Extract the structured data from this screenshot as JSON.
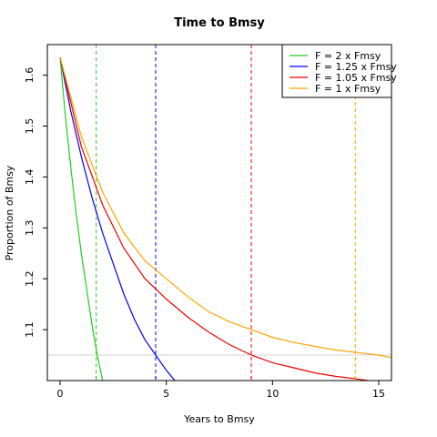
{
  "chart_data": {
    "type": "line",
    "title": "Time to Bmsy",
    "xlabel": "Years to Bmsy",
    "ylabel": "Proportion of Bmsy",
    "xlim": [
      -0.6,
      15.6
    ],
    "ylim": [
      1.0,
      1.66
    ],
    "x_ticks": [
      0,
      5,
      10,
      15
    ],
    "y_ticks": [
      1.1,
      1.2,
      1.3,
      1.4,
      1.5,
      1.6
    ],
    "grid": false,
    "legend_position": "top-right",
    "reference_line_y": 1.05,
    "reference_line_color": "#d3d3d3",
    "start_value": 1.635,
    "series": [
      {
        "name": "F = 2 x Fmsy",
        "color": "#22cc22",
        "x": [
          0,
          0.25,
          0.5,
          0.75,
          1.0,
          1.25,
          1.5,
          1.75,
          2.0
        ],
        "y": [
          1.635,
          1.52,
          1.42,
          1.33,
          1.25,
          1.18,
          1.11,
          1.05,
          1.0
        ],
        "marker_x": 1.7
      },
      {
        "name": "F = 1.25 x Fmsy",
        "color": "#0000ee",
        "x": [
          0,
          0.5,
          1.0,
          1.5,
          2.0,
          2.5,
          3.0,
          3.5,
          4.0,
          4.5,
          5.0,
          5.4
        ],
        "y": [
          1.635,
          1.53,
          1.44,
          1.36,
          1.29,
          1.23,
          1.17,
          1.12,
          1.08,
          1.05,
          1.02,
          1.0
        ],
        "marker_x": 4.5
      },
      {
        "name": "F = 1.05 x Fmsy",
        "color": "#ee0000",
        "x": [
          0,
          1,
          2,
          3,
          4,
          5,
          6,
          7,
          8,
          9,
          10,
          11,
          12,
          13,
          14,
          14.5
        ],
        "y": [
          1.635,
          1.46,
          1.345,
          1.26,
          1.2,
          1.16,
          1.125,
          1.095,
          1.07,
          1.05,
          1.035,
          1.025,
          1.015,
          1.008,
          1.003,
          1.0
        ],
        "marker_x": 9.0
      },
      {
        "name": "F = 1 x Fmsy",
        "color": "#ffa500",
        "x": [
          0,
          1,
          2,
          3,
          4,
          5,
          6,
          7,
          8,
          9,
          10,
          11,
          12,
          13,
          14,
          15,
          15.6
        ],
        "y": [
          1.635,
          1.48,
          1.37,
          1.29,
          1.235,
          1.2,
          1.165,
          1.135,
          1.115,
          1.1,
          1.085,
          1.075,
          1.067,
          1.06,
          1.055,
          1.05,
          1.045
        ],
        "marker_x": 13.9
      }
    ]
  }
}
